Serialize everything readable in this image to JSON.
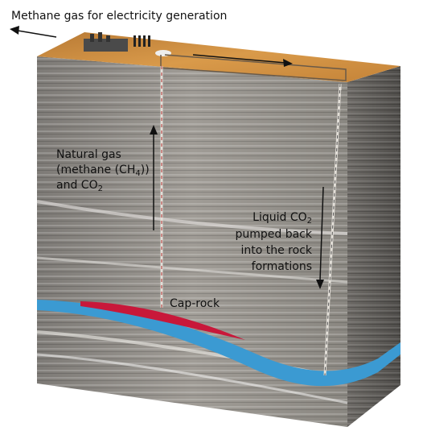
{
  "labels": {
    "top": "Methane gas for electricity generation",
    "gas_line1": "Natural gas",
    "gas_line2_pre": "(methane (CH",
    "gas_line2_sub": "4",
    "gas_line2_post": "))",
    "gas_line3_pre": "and CO",
    "gas_line3_sub": "2",
    "liquid_line1_pre": "Liquid CO",
    "liquid_line1_sub": "2",
    "liquid_line2": "pumped back",
    "liquid_line3": "into the rock",
    "liquid_line4": "formations",
    "caprock": "Cap-rock"
  },
  "colors": {
    "surface": "#c98a3e",
    "rock": "#8e8b86",
    "caprock_blue": "#3b9ad2",
    "gas_red": "#c8183a",
    "arrow": "#111111"
  }
}
